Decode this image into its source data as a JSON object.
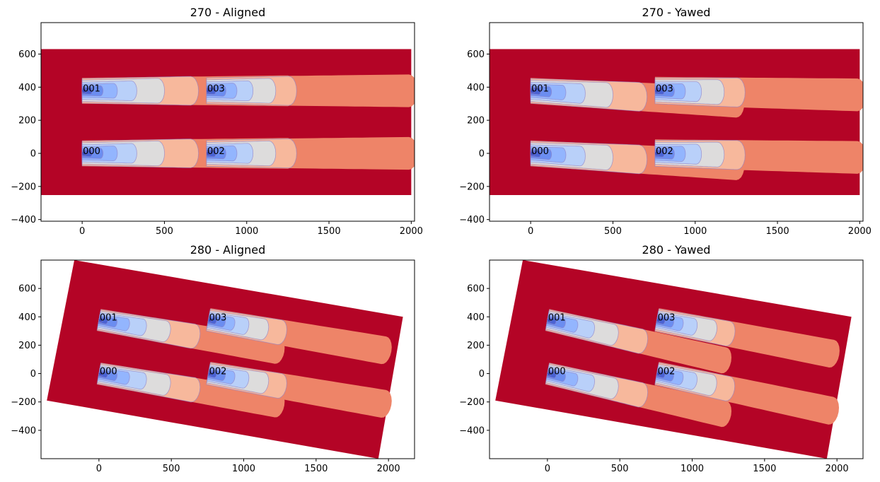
{
  "colors": {
    "background": "#b40426",
    "wake": [
      "#ee8468",
      "#f7b89c",
      "#dddcdc",
      "#b9d0f9",
      "#93b5fe",
      "#6b8df0",
      "#4a63d3",
      "#3b4cc0"
    ],
    "contour_line": "#8e82c8"
  },
  "chart_data": [
    {
      "type": "heatmap",
      "title": "270 - Aligned",
      "wind_direction_deg": 270,
      "yaw": "aligned",
      "xlim": [
        -250,
        2020
      ],
      "ylim": [
        -410,
        790
      ],
      "xticks": [
        0,
        500,
        1000,
        1500,
        2000
      ],
      "yticks": [
        -400,
        -200,
        0,
        200,
        400,
        600
      ],
      "domain": {
        "x0": -252,
        "x1": 2000,
        "y0": -252,
        "y1": 630
      },
      "turbines": [
        {
          "label": "000",
          "x": 0,
          "y": 0
        },
        {
          "label": "001",
          "x": 0,
          "y": 378
        },
        {
          "label": "002",
          "x": 756,
          "y": 0
        },
        {
          "label": "003",
          "x": 756,
          "y": 378
        }
      ]
    },
    {
      "type": "heatmap",
      "title": "270 - Yawed",
      "wind_direction_deg": 270,
      "yaw": "yawed",
      "xlim": [
        -250,
        2020
      ],
      "ylim": [
        -410,
        790
      ],
      "xticks": [
        0,
        500,
        1000,
        1500,
        2000
      ],
      "yticks": [
        -400,
        -200,
        0,
        200,
        400,
        600
      ],
      "domain": {
        "x0": -252,
        "x1": 2000,
        "y0": -252,
        "y1": 630
      },
      "turbines": [
        {
          "label": "000",
          "x": 0,
          "y": 0
        },
        {
          "label": "001",
          "x": 0,
          "y": 378
        },
        {
          "label": "002",
          "x": 756,
          "y": 0
        },
        {
          "label": "003",
          "x": 756,
          "y": 378
        }
      ]
    },
    {
      "type": "heatmap",
      "title": "280 - Aligned",
      "wind_direction_deg": 280,
      "yaw": "aligned",
      "xlim": [
        -400,
        2180
      ],
      "ylim": [
        -600,
        800
      ],
      "xticks": [
        0,
        500,
        1000,
        1500,
        2000
      ],
      "yticks": [
        -400,
        -200,
        0,
        200,
        400,
        600
      ],
      "domain_corners": [
        [
          -360,
          -190
        ],
        [
          -170,
          800
        ],
        [
          2100,
          400
        ],
        [
          1930,
          -600
        ]
      ],
      "turbines": [
        {
          "label": "000",
          "x": 0,
          "y": 0
        },
        {
          "label": "001",
          "x": 0,
          "y": 378
        },
        {
          "label": "002",
          "x": 756,
          "y": 0
        },
        {
          "label": "003",
          "x": 756,
          "y": 378
        }
      ]
    },
    {
      "type": "heatmap",
      "title": "280 - Yawed",
      "wind_direction_deg": 280,
      "yaw": "yawed",
      "xlim": [
        -400,
        2180
      ],
      "ylim": [
        -600,
        800
      ],
      "xticks": [
        0,
        500,
        1000,
        1500,
        2000
      ],
      "yticks": [
        -400,
        -200,
        0,
        200,
        400,
        600
      ],
      "domain_corners": [
        [
          -360,
          -190
        ],
        [
          -170,
          800
        ],
        [
          2100,
          400
        ],
        [
          1930,
          -600
        ]
      ],
      "turbines": [
        {
          "label": "000",
          "x": 0,
          "y": 0
        },
        {
          "label": "001",
          "x": 0,
          "y": 378
        },
        {
          "label": "002",
          "x": 756,
          "y": 0
        },
        {
          "label": "003",
          "x": 756,
          "y": 378
        }
      ]
    }
  ]
}
